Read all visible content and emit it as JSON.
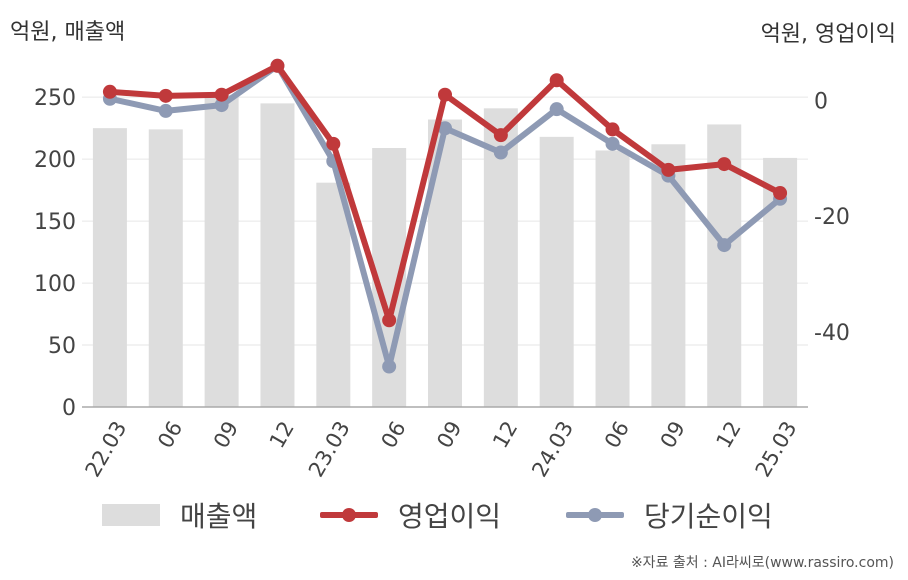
{
  "chart_data": {
    "type": "bar",
    "categories": [
      "22.03",
      "06",
      "09",
      "12",
      "23.03",
      "06",
      "09",
      "12",
      "24.03",
      "06",
      "09",
      "12",
      "25.03"
    ],
    "left_axis": {
      "unit_label": "억원, 매출액",
      "ylim": [
        0,
        280
      ],
      "ticks": [
        0,
        50,
        100,
        150,
        200,
        250
      ]
    },
    "right_axis": {
      "unit_label": "억원, 영업이익",
      "ylim": [
        -53,
        7
      ],
      "ticks": [
        0,
        -20,
        -40
      ]
    },
    "series": [
      {
        "name": "매출액",
        "type": "bar",
        "axis": "left",
        "color": "#dddddd",
        "values": [
          225,
          224,
          252,
          245,
          181,
          209,
          232,
          241,
          218,
          207,
          212,
          228,
          201
        ]
      },
      {
        "name": "영업이익",
        "type": "line",
        "axis": "right",
        "color": "#c0393b",
        "values": [
          1.5,
          0.8,
          1.0,
          6.0,
          -7.5,
          -38.0,
          1.0,
          -6.0,
          3.5,
          -5.0,
          -12.0,
          -11.0,
          -16.0
        ]
      },
      {
        "name": "당기순이익",
        "type": "line",
        "axis": "right",
        "color": "#8e9ab4",
        "values": [
          0.3,
          -1.8,
          -0.8,
          6.0,
          -10.5,
          -46.0,
          -4.8,
          -9.0,
          -1.5,
          -7.5,
          -13.0,
          -25.0,
          -17.0
        ]
      }
    ],
    "grid": true,
    "legend_position": "bottom"
  },
  "source": "※자료 출처 : AI라씨로(www.rassiro.com)"
}
